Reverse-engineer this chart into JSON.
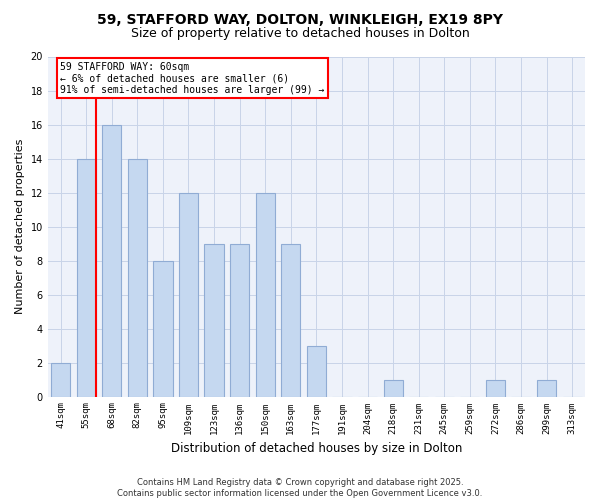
{
  "title_line1": "59, STAFFORD WAY, DOLTON, WINKLEIGH, EX19 8PY",
  "title_line2": "Size of property relative to detached houses in Dolton",
  "xlabel": "Distribution of detached houses by size in Dolton",
  "ylabel": "Number of detached properties",
  "categories": [
    "41sqm",
    "55sqm",
    "68sqm",
    "82sqm",
    "95sqm",
    "109sqm",
    "123sqm",
    "136sqm",
    "150sqm",
    "163sqm",
    "177sqm",
    "191sqm",
    "204sqm",
    "218sqm",
    "231sqm",
    "245sqm",
    "259sqm",
    "272sqm",
    "286sqm",
    "299sqm",
    "313sqm"
  ],
  "bar_heights": [
    2,
    14,
    16,
    14,
    8,
    12,
    9,
    9,
    12,
    9,
    3,
    0,
    0,
    1,
    0,
    0,
    0,
    1,
    0,
    1,
    0
  ],
  "bar_color": "#c5d8f0",
  "bar_edge_color": "#90acd4",
  "bar_linewidth": 0.8,
  "bar_width": 0.75,
  "red_line_x": 1.5,
  "annotation_text": "59 STAFFORD WAY: 60sqm\n← 6% of detached houses are smaller (6)\n91% of semi-detached houses are larger (99) →",
  "annotation_box_color": "white",
  "annotation_box_edge_color": "red",
  "ylim": [
    0,
    20
  ],
  "yticks": [
    0,
    2,
    4,
    6,
    8,
    10,
    12,
    14,
    16,
    18,
    20
  ],
  "grid_color": "#c8d4e8",
  "background_color": "#eef2fa",
  "footnote": "Contains HM Land Registry data © Crown copyright and database right 2025.\nContains public sector information licensed under the Open Government Licence v3.0.",
  "title_fontsize": 10,
  "subtitle_fontsize": 9,
  "ylabel_fontsize": 8,
  "xlabel_fontsize": 8.5,
  "tick_fontsize": 6.5,
  "annot_fontsize": 7,
  "footnote_fontsize": 6
}
